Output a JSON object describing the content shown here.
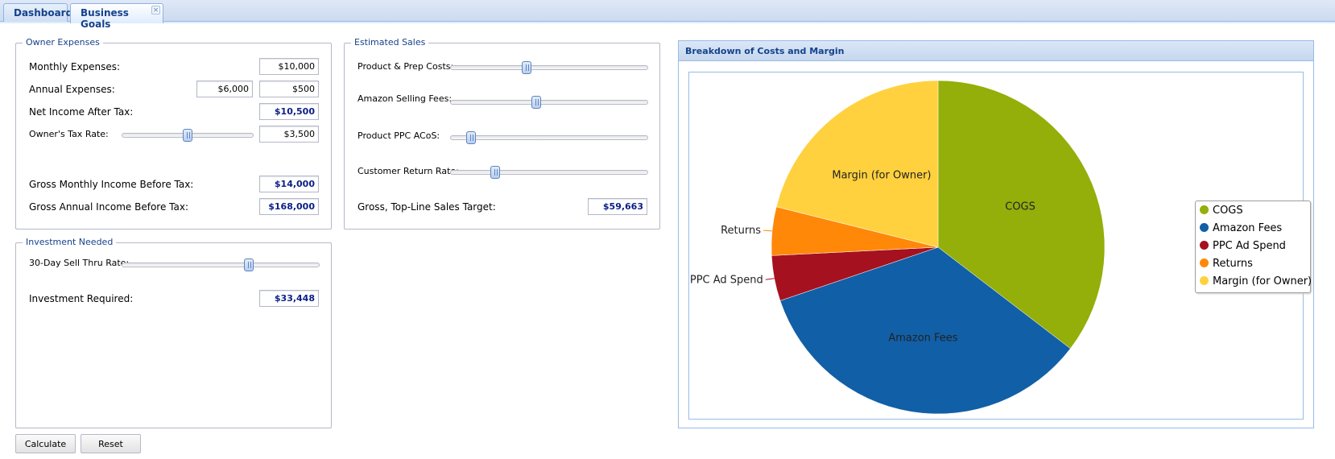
{
  "tabs": [
    {
      "label": "Dashboard"
    },
    {
      "label": "Business Goals",
      "close": "×"
    }
  ],
  "owner_expenses": {
    "legend": "Owner Expenses",
    "monthly_expenses_label": "Monthly Expenses:",
    "monthly_expenses_value": "$10,000",
    "annual_expenses_label": "Annual Expenses:",
    "annual_expenses_value": "$6,000",
    "annual_expenses_value2": "$500",
    "net_income_label": "Net Income After Tax:",
    "net_income_value": "$10,500",
    "tax_rate_label": "Owner's Tax Rate:",
    "tax_rate_slider": 0.5,
    "tax_rate_value": "$3,500",
    "gross_monthly_label": "Gross Monthly Income Before Tax:",
    "gross_monthly_value": "$14,000",
    "gross_annual_label": "Gross Annual Income Before Tax:",
    "gross_annual_value": "$168,000"
  },
  "investment": {
    "legend": "Investment Needed",
    "sell_thru_label": "30-Day Sell Thru Rate:",
    "sell_thru_slider": 0.65,
    "investment_label": "Investment Required:",
    "investment_value": "$33,448"
  },
  "estimated_sales": {
    "legend": "Estimated Sales",
    "product_costs_label": "Product & Prep Costs:",
    "product_costs_slider": 0.38,
    "selling_fees_label": "Amazon Selling Fees:",
    "selling_fees_slider": 0.43,
    "ppc_acos_label": "Product PPC ACoS:",
    "ppc_acos_slider": 0.08,
    "return_rate_label": "Customer Return Rate:",
    "return_rate_slider": 0.21,
    "sales_target_label": "Gross, Top-Line Sales Target:",
    "sales_target_value": "$59,663"
  },
  "buttons": {
    "calculate": "Calculate",
    "reset": "Reset"
  },
  "chart_panel": {
    "title": "Breakdown of Costs and Margin"
  },
  "chart_data": {
    "type": "pie",
    "title": "Breakdown of Costs and Margin",
    "legend_position": "right",
    "slices": [
      {
        "name": "COGS",
        "value": 35.4,
        "color": "#94ae0a"
      },
      {
        "name": "Amazon Fees",
        "value": 34.4,
        "color": "#115fa6"
      },
      {
        "name": "PPC Ad Spend",
        "value": 4.4,
        "color": "#a61120"
      },
      {
        "name": "Returns",
        "value": 4.7,
        "color": "#ff8809"
      },
      {
        "name": "Margin (for Owner)",
        "value": 21.1,
        "color": "#ffd13e"
      }
    ]
  }
}
